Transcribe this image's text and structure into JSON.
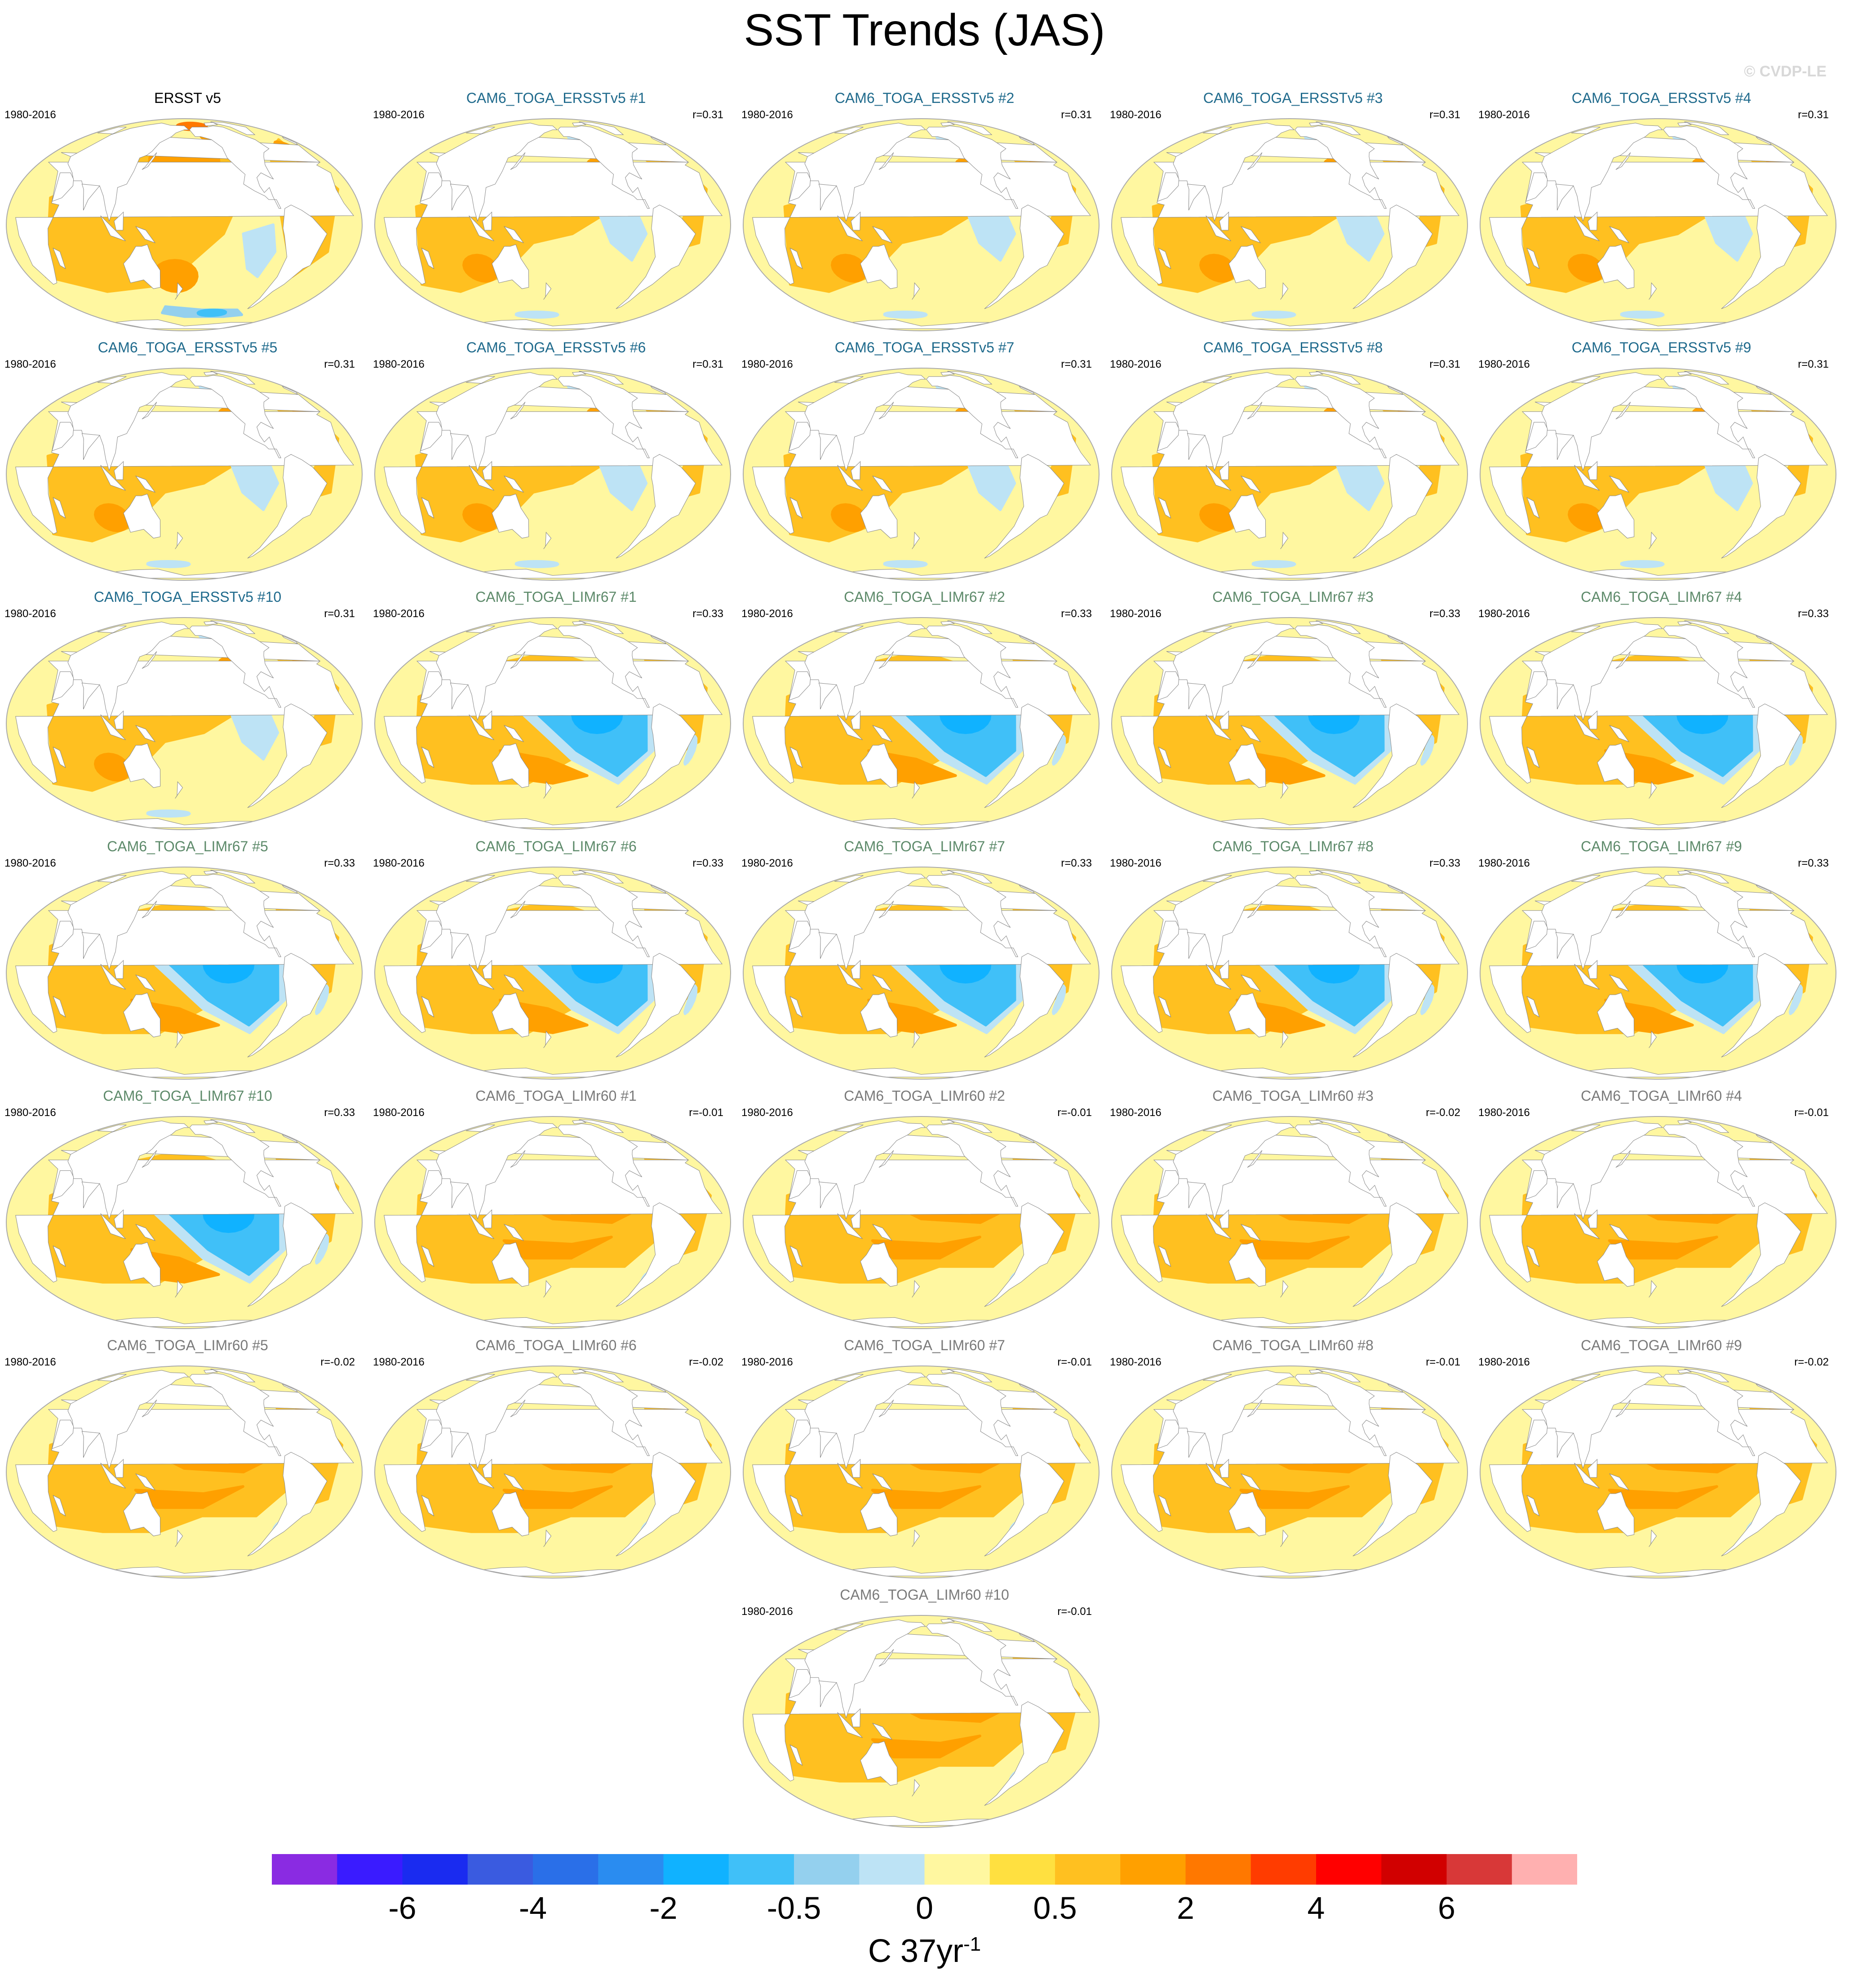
{
  "title": "SST Trends (JAS)",
  "watermark": "© CVDP-LE",
  "colors": {
    "obs_title": "#000000",
    "ersst_title": "#1f6a8c",
    "limr67_title": "#5d8a6a",
    "limr60_title": "#7a7a7a",
    "land": "#ffffff",
    "coast": "#888888"
  },
  "panels": [
    {
      "title": "ERSST v5",
      "period": "1980-2016",
      "r": "",
      "pattern": "obs"
    },
    {
      "title": "CAM6_TOGA_ERSSTv5 #1",
      "period": "1980-2016",
      "r": "r=0.31",
      "pattern": "ersst"
    },
    {
      "title": "CAM6_TOGA_ERSSTv5 #2",
      "period": "1980-2016",
      "r": "r=0.31",
      "pattern": "ersst"
    },
    {
      "title": "CAM6_TOGA_ERSSTv5 #3",
      "period": "1980-2016",
      "r": "r=0.31",
      "pattern": "ersst"
    },
    {
      "title": "CAM6_TOGA_ERSSTv5 #4",
      "period": "1980-2016",
      "r": "r=0.31",
      "pattern": "ersst"
    },
    {
      "title": "CAM6_TOGA_ERSSTv5 #5",
      "period": "1980-2016",
      "r": "r=0.31",
      "pattern": "ersst"
    },
    {
      "title": "CAM6_TOGA_ERSSTv5 #6",
      "period": "1980-2016",
      "r": "r=0.31",
      "pattern": "ersst"
    },
    {
      "title": "CAM6_TOGA_ERSSTv5 #7",
      "period": "1980-2016",
      "r": "r=0.31",
      "pattern": "ersst"
    },
    {
      "title": "CAM6_TOGA_ERSSTv5 #8",
      "period": "1980-2016",
      "r": "r=0.31",
      "pattern": "ersst"
    },
    {
      "title": "CAM6_TOGA_ERSSTv5 #9",
      "period": "1980-2016",
      "r": "r=0.31",
      "pattern": "ersst"
    },
    {
      "title": "CAM6_TOGA_ERSSTv5 #10",
      "period": "1980-2016",
      "r": "r=0.31",
      "pattern": "ersst"
    },
    {
      "title": "CAM6_TOGA_LIMr67 #1",
      "period": "1980-2016",
      "r": "r=0.33",
      "pattern": "limr67"
    },
    {
      "title": "CAM6_TOGA_LIMr67 #2",
      "period": "1980-2016",
      "r": "r=0.33",
      "pattern": "limr67"
    },
    {
      "title": "CAM6_TOGA_LIMr67 #3",
      "period": "1980-2016",
      "r": "r=0.33",
      "pattern": "limr67"
    },
    {
      "title": "CAM6_TOGA_LIMr67 #4",
      "period": "1980-2016",
      "r": "r=0.33",
      "pattern": "limr67"
    },
    {
      "title": "CAM6_TOGA_LIMr67 #5",
      "period": "1980-2016",
      "r": "r=0.33",
      "pattern": "limr67"
    },
    {
      "title": "CAM6_TOGA_LIMr67 #6",
      "period": "1980-2016",
      "r": "r=0.33",
      "pattern": "limr67"
    },
    {
      "title": "CAM6_TOGA_LIMr67 #7",
      "period": "1980-2016",
      "r": "r=0.33",
      "pattern": "limr67"
    },
    {
      "title": "CAM6_TOGA_LIMr67 #8",
      "period": "1980-2016",
      "r": "r=0.33",
      "pattern": "limr67"
    },
    {
      "title": "CAM6_TOGA_LIMr67 #9",
      "period": "1980-2016",
      "r": "r=0.33",
      "pattern": "limr67"
    },
    {
      "title": "CAM6_TOGA_LIMr67 #10",
      "period": "1980-2016",
      "r": "r=0.33",
      "pattern": "limr67"
    },
    {
      "title": "CAM6_TOGA_LIMr60 #1",
      "period": "1980-2016",
      "r": "r=-0.01",
      "pattern": "limr60"
    },
    {
      "title": "CAM6_TOGA_LIMr60 #2",
      "period": "1980-2016",
      "r": "r=-0.01",
      "pattern": "limr60"
    },
    {
      "title": "CAM6_TOGA_LIMr60 #3",
      "period": "1980-2016",
      "r": "r=-0.02",
      "pattern": "limr60"
    },
    {
      "title": "CAM6_TOGA_LIMr60 #4",
      "period": "1980-2016",
      "r": "r=-0.01",
      "pattern": "limr60"
    },
    {
      "title": "CAM6_TOGA_LIMr60 #5",
      "period": "1980-2016",
      "r": "r=-0.02",
      "pattern": "limr60"
    },
    {
      "title": "CAM6_TOGA_LIMr60 #6",
      "period": "1980-2016",
      "r": "r=-0.02",
      "pattern": "limr60"
    },
    {
      "title": "CAM6_TOGA_LIMr60 #7",
      "period": "1980-2016",
      "r": "r=-0.01",
      "pattern": "limr60"
    },
    {
      "title": "CAM6_TOGA_LIMr60 #8",
      "period": "1980-2016",
      "r": "r=-0.01",
      "pattern": "limr60"
    },
    {
      "title": "CAM6_TOGA_LIMr60 #9",
      "period": "1980-2016",
      "r": "r=-0.02",
      "pattern": "limr60"
    },
    {
      "title": "CAM6_TOGA_LIMr60 #10",
      "period": "1980-2016",
      "r": "r=-0.01",
      "pattern": "limr60"
    }
  ],
  "colorbar": {
    "colors": [
      "#8a2be2",
      "#3a1bff",
      "#1a2bf0",
      "#3a5be0",
      "#2a6fe8",
      "#2a8cf0",
      "#10b2ff",
      "#40c0f8",
      "#94d0ee",
      "#bde3f5",
      "#fff7a0",
      "#ffe040",
      "#ffc020",
      "#ffa000",
      "#ff7800",
      "#ff3c00",
      "#ff0000",
      "#d10000",
      "#d83838",
      "#ffb0b0"
    ],
    "labels": [
      {
        "boundary": 2,
        "text": "-6"
      },
      {
        "boundary": 4,
        "text": "-4"
      },
      {
        "boundary": 6,
        "text": "-2"
      },
      {
        "boundary": 8,
        "text": "-0.5"
      },
      {
        "boundary": 10,
        "text": "0"
      },
      {
        "boundary": 12,
        "text": "0.5"
      },
      {
        "boundary": 14,
        "text": "2"
      },
      {
        "boundary": 16,
        "text": "4"
      },
      {
        "boundary": 18,
        "text": "6"
      }
    ],
    "units_base": "C 37yr",
    "units_exp": "-1"
  }
}
